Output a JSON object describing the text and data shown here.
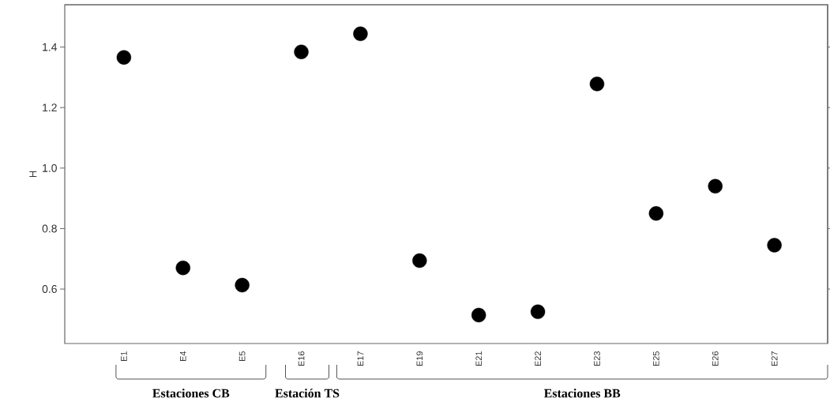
{
  "chart_data": {
    "type": "scatter",
    "ylabel": "H",
    "categories": [
      "E1",
      "E4",
      "E5",
      "E16",
      "E17",
      "E19",
      "E21",
      "E22",
      "E23",
      "E25",
      "E26",
      "E27"
    ],
    "values": [
      1.366,
      0.67,
      0.613,
      1.384,
      1.444,
      0.694,
      0.514,
      0.525,
      1.278,
      0.85,
      0.94,
      0.745
    ],
    "color": "#000000",
    "marker": "circle",
    "grid": false,
    "ylim": [
      0.42,
      1.54
    ],
    "yticks": [
      0.6,
      0.8,
      {
        "value": 1.0,
        "label": "1.0"
      },
      1.2,
      1.4
    ],
    "annotations": [
      "Estaciones CB",
      "Estación TS",
      "Estaciones BB"
    ]
  }
}
